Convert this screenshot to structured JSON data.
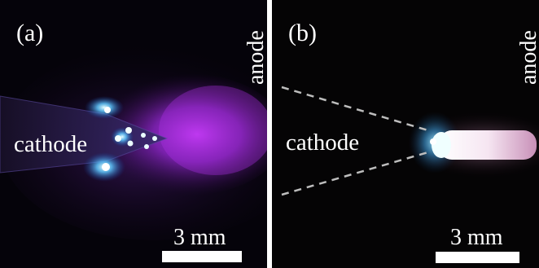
{
  "panel_a": {
    "tag": "(a)",
    "cathode_label": "cathode",
    "anode_label": "anode",
    "scale_label": "3 mm"
  },
  "panel_b": {
    "tag": "(b)",
    "cathode_label": "cathode",
    "anode_label": "anode",
    "scale_label": "3 mm"
  },
  "colors": {
    "background": "#000000",
    "plasma_a": "#c030f0",
    "glow_blue": "#4fc8ff",
    "plasma_b": "#f0d0e8",
    "dashed_outline": "#bfbfbf"
  }
}
